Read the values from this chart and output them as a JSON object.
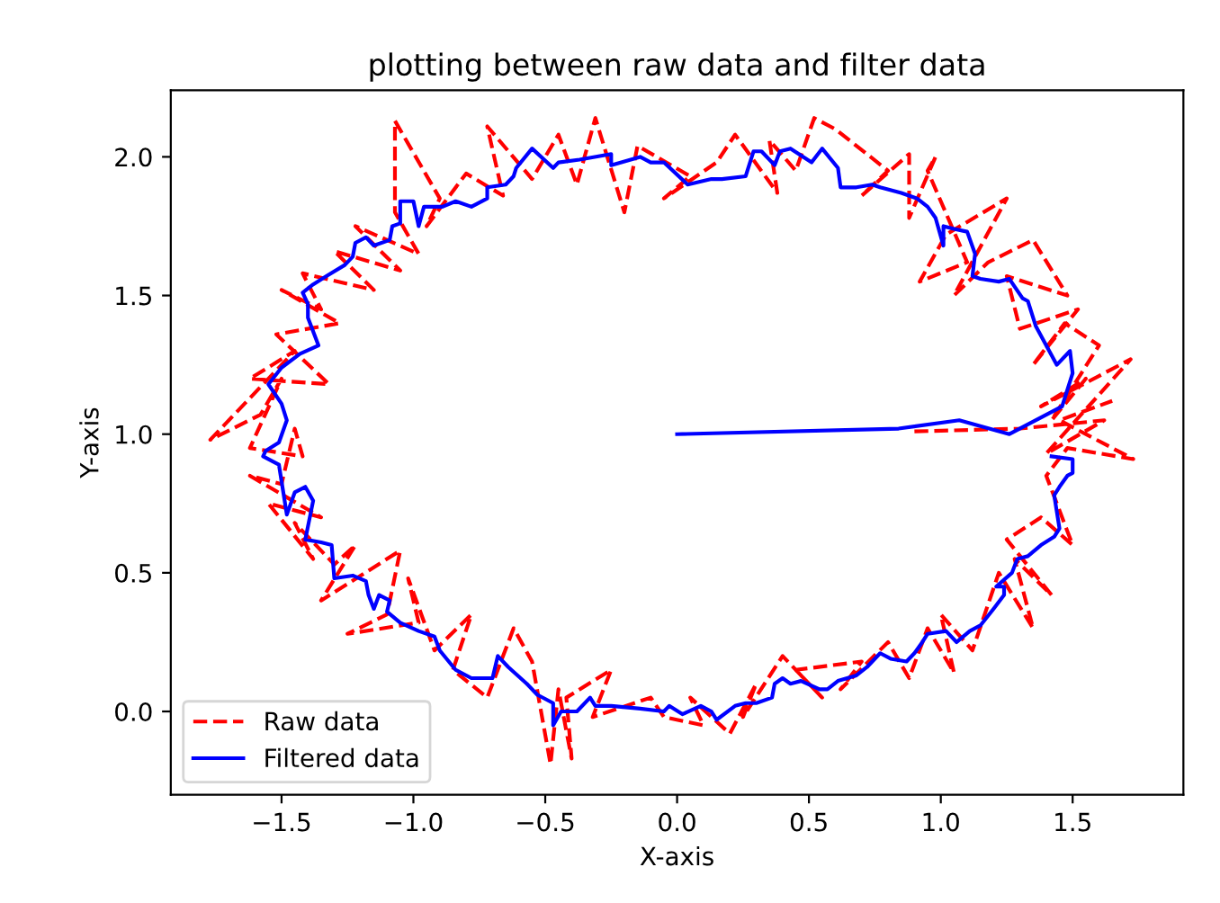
{
  "chart_data": {
    "type": "line",
    "title": "plotting between raw data and filter data",
    "xlabel": "X-axis",
    "ylabel": "Y-axis",
    "xlim": [
      -1.92,
      1.92
    ],
    "ylim": [
      -0.3,
      2.24
    ],
    "xticks": [
      {
        "value": -1.5,
        "label": "−1.5"
      },
      {
        "value": -1.0,
        "label": "−1.0"
      },
      {
        "value": -0.5,
        "label": "−0.5"
      },
      {
        "value": 0.0,
        "label": "0.0"
      },
      {
        "value": 0.5,
        "label": "0.5"
      },
      {
        "value": 1.0,
        "label": "1.0"
      },
      {
        "value": 1.5,
        "label": "1.5"
      }
    ],
    "yticks": [
      {
        "value": 0.0,
        "label": "0.0"
      },
      {
        "value": 0.5,
        "label": "0.5"
      },
      {
        "value": 1.0,
        "label": "1.0"
      },
      {
        "value": 1.5,
        "label": "1.5"
      },
      {
        "value": 2.0,
        "label": "2.0"
      }
    ],
    "grid": false,
    "legend": "bottom left",
    "marker": "none",
    "series": [
      {
        "name": "Raw data",
        "color": "#ff0000",
        "line_style": "dashed",
        "x": [
          0.9,
          1.3,
          1.62,
          1.4,
          1.72,
          1.38,
          1.55,
          1.42,
          1.6,
          1.47,
          1.35,
          1.52,
          1.3,
          1.25,
          1.48,
          1.35,
          1.18,
          1.05,
          1.25,
          1.02,
          0.92,
          1.1,
          0.95,
          0.98,
          0.88,
          0.88,
          0.7,
          0.8,
          0.6,
          0.52,
          0.45,
          0.35,
          0.38,
          0.22,
          0.15,
          -0.05,
          0.05,
          -0.15,
          -0.2,
          -0.31,
          -0.38,
          -0.45,
          -0.55,
          -0.72,
          -0.66,
          -0.8,
          -0.95,
          -0.9,
          -1.07,
          -1.07,
          -0.98,
          -1.22,
          -1.05,
          -1.3,
          -1.15,
          -1.42,
          -1.35,
          -1.5,
          -1.28,
          -1.52,
          -1.32,
          -1.62,
          -1.45,
          -1.77,
          -1.58,
          -1.5,
          -1.62,
          -1.42,
          -1.45,
          -1.5,
          -1.62,
          -1.35,
          -1.55,
          -1.38,
          -1.45,
          -1.3,
          -1.22,
          -1.35,
          -1.05,
          -1.1,
          -1.25,
          -0.98,
          -1.02,
          -0.92,
          -0.78,
          -0.85,
          -0.72,
          -0.62,
          -0.55,
          -0.48,
          -0.45,
          -0.4,
          -0.42,
          -0.25,
          -0.32,
          -0.1,
          -0.05,
          0.1,
          0.05,
          0.2,
          0.3,
          0.25,
          0.4,
          0.55,
          0.45,
          0.7,
          0.62,
          0.8,
          0.88,
          0.95,
          1.05,
          1.0,
          1.12,
          1.22,
          1.35,
          1.28,
          1.42,
          1.25,
          1.38,
          1.5,
          1.4,
          1.48,
          1.73,
          1.45,
          1.65
        ],
        "values": [
          1.01,
          1.02,
          1.05,
          0.93,
          1.27,
          1.1,
          1.2,
          1.05,
          1.32,
          1.4,
          1.25,
          1.45,
          1.38,
          1.57,
          1.5,
          1.7,
          1.62,
          1.5,
          1.85,
          1.72,
          1.55,
          1.62,
          1.95,
          2.0,
          1.78,
          2.01,
          1.86,
          1.95,
          2.1,
          2.14,
          1.95,
          2.06,
          1.87,
          2.08,
          1.98,
          1.85,
          1.93,
          2.04,
          1.8,
          2.14,
          1.9,
          2.08,
          1.92,
          2.11,
          1.86,
          1.94,
          1.75,
          1.85,
          2.13,
          1.8,
          1.65,
          1.75,
          1.59,
          1.66,
          1.52,
          1.58,
          1.45,
          1.52,
          1.4,
          1.36,
          1.18,
          1.2,
          1.3,
          0.98,
          1.07,
          1.2,
          0.95,
          0.92,
          1.02,
          0.82,
          0.85,
          0.7,
          0.75,
          0.55,
          0.68,
          0.53,
          0.6,
          0.4,
          0.58,
          0.35,
          0.28,
          0.32,
          0.48,
          0.22,
          0.35,
          0.15,
          0.05,
          0.3,
          0.18,
          -0.19,
          0.08,
          -0.17,
          0.05,
          0.15,
          -0.02,
          0.05,
          -0.02,
          -0.05,
          0.05,
          -0.08,
          0.1,
          -0.02,
          0.2,
          0.05,
          0.15,
          0.18,
          0.08,
          0.25,
          0.12,
          0.3,
          0.14,
          0.35,
          0.22,
          0.5,
          0.3,
          0.55,
          0.42,
          0.62,
          0.7,
          0.6,
          0.85,
          0.95,
          0.91,
          1.05,
          1.12
        ]
      },
      {
        "name": "Filtered data",
        "color": "#0000ff",
        "line_style": "solid",
        "x": [
          0.0,
          0.84,
          1.07,
          1.26,
          1.46,
          1.5,
          1.49,
          1.44,
          1.36,
          1.33,
          1.31,
          1.26,
          1.22,
          1.15,
          1.12,
          1.13,
          1.1,
          1.05,
          1.01,
          1.01,
          0.98,
          0.95,
          0.91,
          0.85,
          0.77,
          0.74,
          0.68,
          0.62,
          0.61,
          0.55,
          0.51,
          0.43,
          0.39,
          0.37,
          0.32,
          0.29,
          0.26,
          0.17,
          0.13,
          0.04,
          -0.05,
          -0.1,
          -0.14,
          -0.25,
          -0.25,
          -0.37,
          -0.45,
          -0.47,
          -0.55,
          -0.61,
          -0.62,
          -0.65,
          -0.72,
          -0.72,
          -0.78,
          -0.84,
          -0.89,
          -0.96,
          -0.98,
          -1.0,
          -1.05,
          -1.05,
          -1.08,
          -1.09,
          -1.15,
          -1.18,
          -1.22,
          -1.23,
          -1.26,
          -1.33,
          -1.38,
          -1.42,
          -1.4,
          -1.4,
          -1.36,
          -1.43,
          -1.5,
          -1.55,
          -1.5,
          -1.48,
          -1.51,
          -1.56,
          -1.57,
          -1.51,
          -1.5,
          -1.48,
          -1.45,
          -1.41,
          -1.38,
          -1.41,
          -1.35,
          -1.31,
          -1.3,
          -1.23,
          -1.18,
          -1.17,
          -1.15,
          -1.13,
          -1.09,
          -1.1,
          -1.05,
          -0.98,
          -0.92,
          -0.9,
          -0.84,
          -0.78,
          -0.7,
          -0.68,
          -0.64,
          -0.57,
          -0.53,
          -0.47,
          -0.47,
          -0.44,
          -0.38,
          -0.33,
          -0.31,
          -0.25,
          -0.14,
          -0.05,
          -0.03,
          0.02,
          0.09,
          0.13,
          0.15,
          0.22,
          0.26,
          0.3,
          0.36,
          0.37,
          0.4,
          0.43,
          0.47,
          0.54,
          0.57,
          0.61,
          0.68,
          0.72,
          0.77,
          0.81,
          0.87,
          0.9,
          0.93,
          0.95,
          1.02,
          1.06,
          1.11,
          1.15,
          1.2,
          1.24,
          1.24,
          1.21,
          1.27,
          1.29,
          1.33,
          1.38,
          1.43,
          1.45,
          1.44,
          1.43,
          1.45,
          1.48,
          1.5,
          1.5,
          1.42
        ],
        "values": [
          1.0,
          1.02,
          1.05,
          1.0,
          1.1,
          1.22,
          1.3,
          1.25,
          1.39,
          1.48,
          1.49,
          1.56,
          1.55,
          1.56,
          1.57,
          1.65,
          1.73,
          1.74,
          1.75,
          1.68,
          1.78,
          1.82,
          1.85,
          1.87,
          1.89,
          1.9,
          1.89,
          1.89,
          1.96,
          2.03,
          1.98,
          2.03,
          2.02,
          1.97,
          2.02,
          2.02,
          1.93,
          1.92,
          1.92,
          1.9,
          1.98,
          1.98,
          2.0,
          1.97,
          2.01,
          1.99,
          1.98,
          1.96,
          2.03,
          1.96,
          1.93,
          1.9,
          1.89,
          1.85,
          1.82,
          1.84,
          1.82,
          1.82,
          1.75,
          1.84,
          1.84,
          1.76,
          1.75,
          1.7,
          1.68,
          1.71,
          1.69,
          1.64,
          1.61,
          1.57,
          1.54,
          1.51,
          1.47,
          1.42,
          1.32,
          1.29,
          1.24,
          1.18,
          1.11,
          1.05,
          0.97,
          0.94,
          0.92,
          0.89,
          0.83,
          0.71,
          0.79,
          0.81,
          0.76,
          0.62,
          0.61,
          0.6,
          0.48,
          0.49,
          0.47,
          0.42,
          0.37,
          0.42,
          0.4,
          0.36,
          0.32,
          0.29,
          0.27,
          0.22,
          0.15,
          0.12,
          0.12,
          0.2,
          0.16,
          0.1,
          0.06,
          0.03,
          -0.05,
          0.0,
          0.0,
          0.05,
          0.02,
          0.02,
          0.01,
          0.0,
          0.02,
          -0.01,
          0.02,
          0.0,
          -0.03,
          0.02,
          0.03,
          0.03,
          0.05,
          0.1,
          0.12,
          0.1,
          0.11,
          0.08,
          0.08,
          0.11,
          0.13,
          0.16,
          0.21,
          0.19,
          0.18,
          0.21,
          0.25,
          0.28,
          0.29,
          0.25,
          0.29,
          0.31,
          0.37,
          0.42,
          0.45,
          0.45,
          0.5,
          0.55,
          0.56,
          0.6,
          0.63,
          0.66,
          0.72,
          0.78,
          0.81,
          0.85,
          0.86,
          0.91,
          0.92
        ]
      }
    ]
  }
}
